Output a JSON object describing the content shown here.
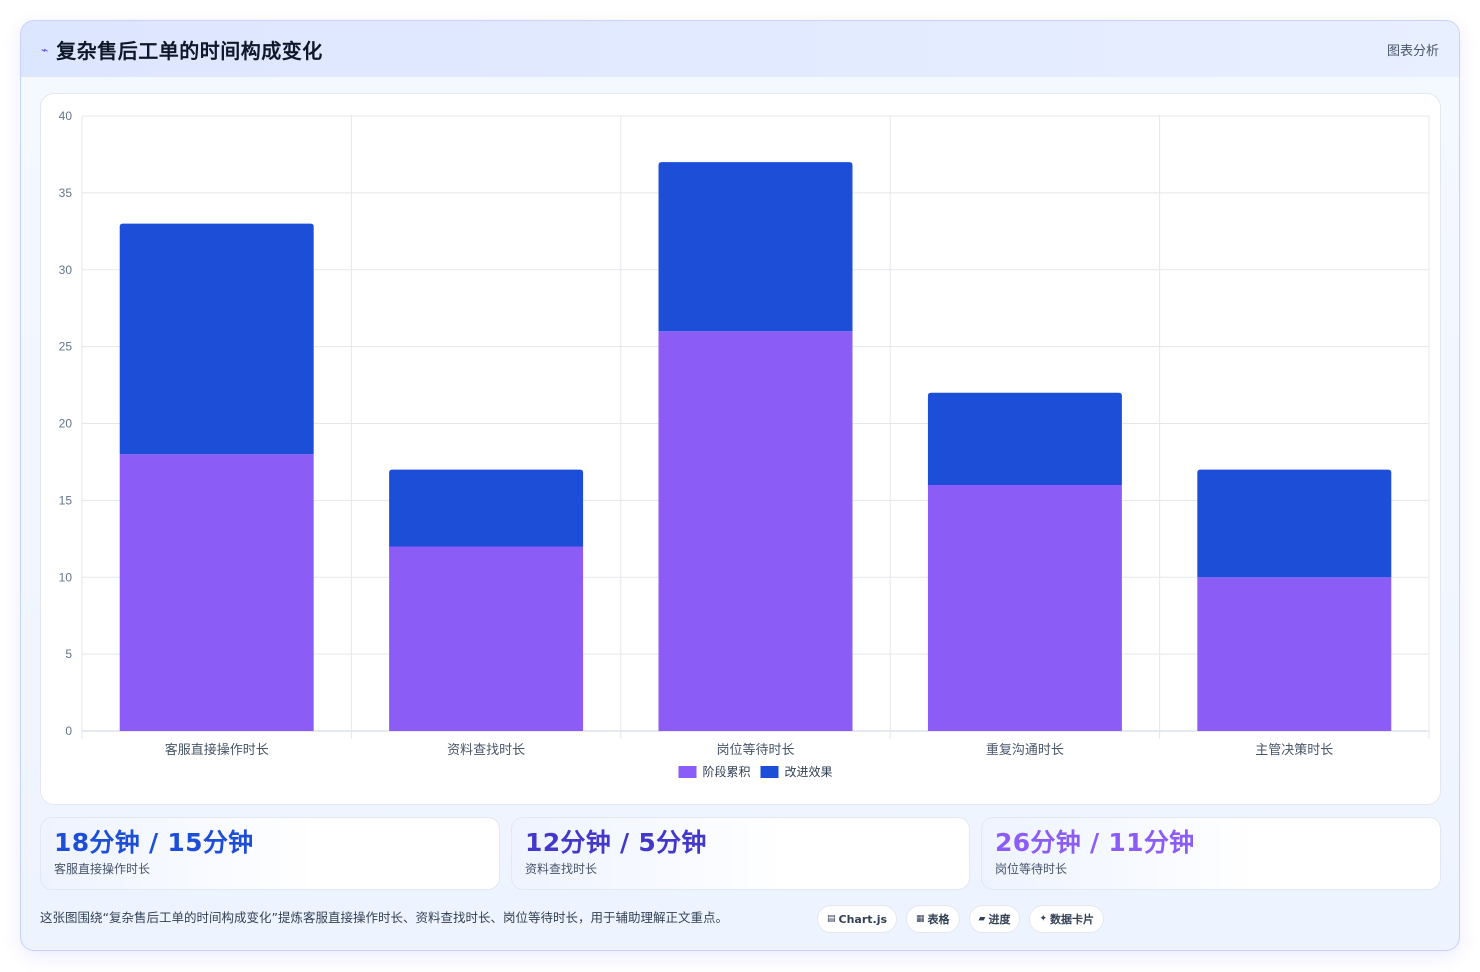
{
  "header": {
    "title": "复杂售后工单的时间构成变化",
    "tag": "图表分析"
  },
  "chart_data": {
    "type": "bar",
    "stacked": true,
    "categories": [
      "客服直接操作时长",
      "资料查找时长",
      "岗位等待时长",
      "重复沟通时长",
      "主管决策时长"
    ],
    "series": [
      {
        "name": "阶段累积",
        "color": "#8b5cf6",
        "values": [
          18,
          12,
          26,
          16,
          10
        ]
      },
      {
        "name": "改进效果",
        "color": "#1d4ed8",
        "values": [
          15,
          5,
          11,
          6,
          7
        ]
      }
    ],
    "ylim": [
      0,
      40
    ],
    "yticks": [
      0,
      5,
      10,
      15,
      20,
      25,
      30,
      35,
      40
    ],
    "grid": true,
    "legend": "bottom"
  },
  "stats": [
    {
      "value": "18分钟 / 15分钟",
      "label": "客服直接操作时长",
      "color": "#1d4ed8"
    },
    {
      "value": "12分钟 / 5分钟",
      "label": "资料查找时长",
      "color": "#4338ca"
    },
    {
      "value": "26分钟 / 11分钟",
      "label": "岗位等待时长",
      "color": "#8b5cf6"
    }
  ],
  "footer": {
    "text": "这张图围绕“复杂售后工单的时间构成变化”提炼客服直接操作时长、资料查找时长、岗位等待时长，用于辅助理解正文重点。"
  },
  "chips": [
    {
      "icon": "▤",
      "label": "Chart.js"
    },
    {
      "icon": "▦",
      "label": "表格"
    },
    {
      "icon": "▰",
      "label": "进度"
    },
    {
      "icon": "✦",
      "label": "数据卡片"
    }
  ]
}
